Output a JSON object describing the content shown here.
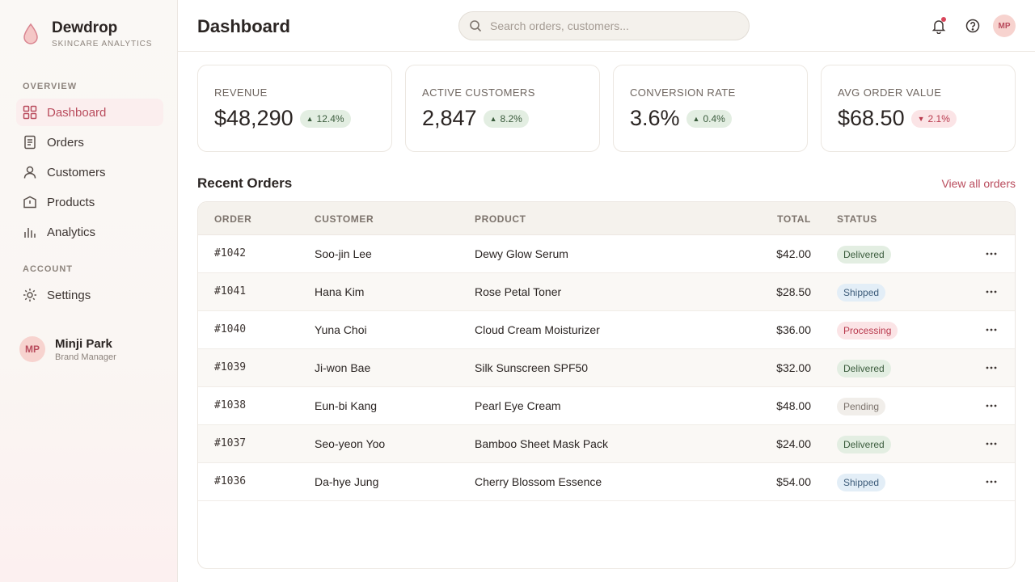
{
  "brand": {
    "name": "Dewdrop",
    "subtitle": "SKINCARE ANALYTICS",
    "accent": "#b94b5c"
  },
  "sidebar": {
    "overview_label": "OVERVIEW",
    "account_label": "ACCOUNT",
    "items": [
      {
        "label": "Dashboard",
        "icon": "grid-icon",
        "active": true
      },
      {
        "label": "Orders",
        "icon": "document-icon",
        "active": false
      },
      {
        "label": "Customers",
        "icon": "user-icon",
        "active": false
      },
      {
        "label": "Products",
        "icon": "box-icon",
        "active": false
      },
      {
        "label": "Analytics",
        "icon": "bar-chart-icon",
        "active": false
      }
    ],
    "account_items": [
      {
        "label": "Settings",
        "icon": "gear-icon"
      }
    ],
    "user": {
      "initials": "MP",
      "name": "Minji Park",
      "role": "Brand Manager"
    }
  },
  "header": {
    "title": "Dashboard",
    "search_placeholder": "Search orders, customers...",
    "avatar_initials": "MP"
  },
  "stats": [
    {
      "label": "REVENUE",
      "value": "$48,290",
      "delta": "12.4%",
      "direction": "up"
    },
    {
      "label": "ACTIVE CUSTOMERS",
      "value": "2,847",
      "delta": "8.2%",
      "direction": "up"
    },
    {
      "label": "CONVERSION RATE",
      "value": "3.6%",
      "delta": "0.4%",
      "direction": "up"
    },
    {
      "label": "AVG ORDER VALUE",
      "value": "$68.50",
      "delta": "2.1%",
      "direction": "down"
    }
  ],
  "orders": {
    "title": "Recent Orders",
    "view_all": "View all orders",
    "columns": {
      "order": "ORDER",
      "customer": "CUSTOMER",
      "product": "PRODUCT",
      "total": "TOTAL",
      "status": "STATUS"
    },
    "rows": [
      {
        "order": "#1042",
        "customer": "Soo-jin Lee",
        "product": "Dewy Glow Serum",
        "total": "$42.00",
        "status": "Delivered"
      },
      {
        "order": "#1041",
        "customer": "Hana Kim",
        "product": "Rose Petal Toner",
        "total": "$28.50",
        "status": "Shipped"
      },
      {
        "order": "#1040",
        "customer": "Yuna Choi",
        "product": "Cloud Cream Moisturizer",
        "total": "$36.00",
        "status": "Processing"
      },
      {
        "order": "#1039",
        "customer": "Ji-won Bae",
        "product": "Silk Sunscreen SPF50",
        "total": "$32.00",
        "status": "Delivered"
      },
      {
        "order": "#1038",
        "customer": "Eun-bi Kang",
        "product": "Pearl Eye Cream",
        "total": "$48.00",
        "status": "Pending"
      },
      {
        "order": "#1037",
        "customer": "Seo-yeon Yoo",
        "product": "Bamboo Sheet Mask Pack",
        "total": "$24.00",
        "status": "Delivered"
      },
      {
        "order": "#1036",
        "customer": "Da-hye Jung",
        "product": "Cherry Blossom Essence",
        "total": "$54.00",
        "status": "Shipped"
      }
    ]
  }
}
